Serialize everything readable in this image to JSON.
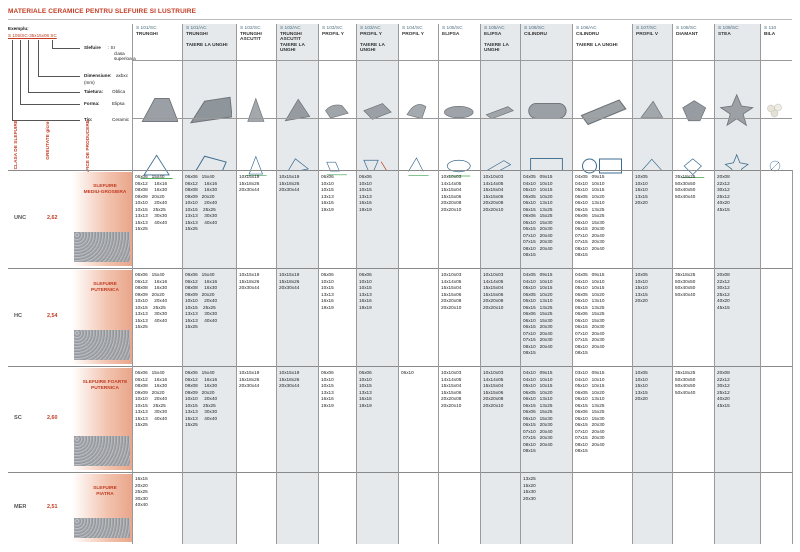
{
  "title": "MATERIALE CERAMICE PENTRU SLEFUIRE SI LUSTRUIRE",
  "legend": {
    "example_label": "Exemplu:",
    "example_code": "S 105/SC-35x15x06 SC",
    "rows": [
      {
        "label": "Slefuire",
        "value": ": SI"
      },
      {
        "label": "",
        "value": "clasa superioara"
      },
      {
        "label": "Dimensiune:",
        "value": "axbxc"
      },
      {
        "label": "",
        "value": "(mm)"
      },
      {
        "label": "Taietura:",
        "value": "Oblica"
      },
      {
        "label": "Forma:",
        "value": "Elipsa"
      },
      {
        "label": "Tip:",
        "value": "Ceramic"
      }
    ]
  },
  "side_headers": {
    "class": "CLASA DE SLEFUIRE",
    "grit": "GREUTATE g/cm³",
    "profile": "GRAFICE DE PRODUCERE"
  },
  "colors": {
    "accent": "#c23b22",
    "code": "#4a6e7f",
    "shade": "#e6e9ec"
  },
  "columns": [
    {
      "code": "S 101/SC",
      "name": "TRUNGHI",
      "shade": false
    },
    {
      "code": "S 101/AC",
      "name": "TRUNGHI\n\nTAIERE LA UNGHI",
      "shade": true
    },
    {
      "code": "S 102/SC",
      "name": "TRUNGHI ASCUTIT",
      "shade": false
    },
    {
      "code": "S 102/AC",
      "name": "TRUNGHI ASCUTIT TAIERE LA UNGHI",
      "shade": true
    },
    {
      "code": "S 103/SC",
      "name": "PROFIL Y",
      "shade": false
    },
    {
      "code": "S 103/AC",
      "name": "PROFIL Y\n\nTAIERE LA UNGHI",
      "shade": true
    },
    {
      "code": "S 104/SC",
      "name": "PROFIL Y",
      "shade": false
    },
    {
      "code": "S 105/SC",
      "name": "ELIPSA",
      "shade": false
    },
    {
      "code": "S 105/AC",
      "name": "ELIPSA\n\nTAIERE LA UNGHI",
      "shade": true
    },
    {
      "code": "S 106/SC",
      "name": "CILINDRU",
      "shade": true
    },
    {
      "code": "S 106/AC",
      "name": "CILINDRU\n\nTAIERE LA UNGHI",
      "shade": false
    },
    {
      "code": "S 107/SC",
      "name": "PROFIL V",
      "shade": true
    },
    {
      "code": "S 108/SC",
      "name": "DIAMANT",
      "shade": false
    },
    {
      "code": "S 109/SC",
      "name": "STEA",
      "shade": true
    },
    {
      "code": "S 110",
      "name": "BILA",
      "shade": false
    }
  ],
  "rows": [
    {
      "grade": "UNC",
      "grit": "2,62",
      "label": "SLEFUIRE\nMEDIU-GROSIERA",
      "cells": [
        "06x06   15x40\n06x12     16x16\n08x08     16x30\n09x09   20x20\n10x10     20x40\n10x15    25x25\n13x13     30x30\n15x13     40x40\n15x25",
        "06x06   15x40\n06x12     16x16\n08x08     16x30\n09x09   20x20\n10x10     20x40\n10x15    25x25\n13x13     30x30\n15x13     40x40\n15x25",
        "10x15x19\n15x18x26\n20x30x44",
        "10x15x19\n15x18x26\n20x30x44",
        "06x06\n10x10\n10x15\n13x13\n16x16\n19x19",
        "06x06\n10x10\n10x15\n13x13\n16x16\n19x19",
        "",
        "10x10x03\n14x14x05\n15x15x04\n15x15x06\n20x20x08\n20x20x10",
        "10x10x03\n14x14x05\n15x15x04\n15x15x06\n20x20x08\n20x20x10",
        "04x05   09x15\n04x10   10x10\n05x10   10x15\n06x05   10x20\n06x10   13x10\n06x15   13x25\n06x06   15x25\n06x10   15x30\n06x15   20x30\n07x10   20x40\n07x15   20x30\n08x10   20x40\n08x15",
        "04x05   09x15\n04x10   10x10\n05x10   10x15\n06x05   10x20\n06x10   13x10\n06x15   13x25\n06x06   15x25\n06x10   15x30\n06x15   20x30\n07x10   20x40\n07x15   20x30\n08x10   20x40\n08x15",
        "10x05\n10x10\n15x10\n13x15\n20x20",
        "35x18x25\n50x30x50\n50x40x50\n50x40x40",
        "20x08\n22x12\n30x12\n25x12\n40x20\n45x15",
        ""
      ]
    },
    {
      "grade": "HC",
      "grit": "2,54",
      "label": "SLEFUIRE\nPUTERNICA",
      "cells": [
        "06x06   15x40\n06x12     16x16\n08x08     16x30\n09x09   20x20\n10x10     20x40\n10x15    25x25\n13x13     30x30\n15x13     40x40\n15x25",
        "06x06   15x40\n06x12     16x16\n08x08     16x30\n09x09   20x20\n10x10     20x40\n10x15    25x25\n13x13     30x30\n15x13     40x40\n15x25",
        "10x15x19\n15x18x26\n20x30x44",
        "10x15x19\n15x18x26\n20x30x44",
        "06x06\n10x10\n10x15\n13x13\n16x16\n19x19",
        "06x06\n10x10\n10x15\n13x13\n16x16\n19x19",
        "",
        "10x10x03\n14x14x05\n15x15x04\n15x15x06\n20x20x08\n20x20x10",
        "10x10x03\n14x14x05\n15x15x04\n15x15x06\n20x20x08\n20x20x10",
        "04x05   09x15\n04x10   10x10\n05x10   10x15\n06x05   10x20\n06x10   13x10\n06x15   13x25\n06x06   15x25\n06x10   15x30\n06x15   20x30\n07x10   20x40\n07x15   20x30\n08x10   20x40\n08x15",
        "04x05   09x15\n04x10   10x10\n05x10   10x15\n06x05   10x20\n06x10   13x10\n06x15   13x25\n06x06   15x25\n06x10   15x30\n06x15   20x30\n07x10   20x40\n07x15   20x30\n08x10   20x40\n08x15",
        "10x05\n10x10\n15x10\n13x15\n20x20",
        "35x18x25\n50x30x50\n50x40x50\n50x40x40",
        "20x08\n22x12\n30x12\n25x12\n40x20\n45x15",
        ""
      ]
    },
    {
      "grade": "SC",
      "grit": "2,60",
      "label": "SLEFUIRE FOARTE\nPUTERNICA",
      "cells": [
        "06x06   15x40\n06x12     16x16\n08x08     16x30\n09x09   20x20\n10x10     20x40\n10x15    25x25\n13x13     30x30\n15x13     40x40\n15x25",
        "06x06   15x40\n06x12     16x16\n08x08     16x30\n09x09   20x20\n10x10     20x40\n10x15    25x25\n13x13     30x30\n15x13     40x40\n15x25",
        "10x15x19\n15x18x26\n20x30x44",
        "10x15x19\n15x18x26\n20x30x44",
        "06x06\n10x10\n10x15\n13x13\n16x16\n19x19",
        "06x06\n10x10\n10x15\n13x13\n16x16\n19x19",
        "06x10",
        "10x10x03\n14x14x05\n15x15x04\n15x15x06\n20x20x08\n20x20x10",
        "10x10x03\n14x14x05\n15x15x04\n15x15x06\n20x20x08\n20x20x10",
        "04x10   09x15\n04x10   10x10\n05x10   10x15\n06x05   10x20\n06x10   13x10\n06x15   13x25\n06x06   15x25\n06x10   15x30\n06x15   20x30\n07x10   20x40\n07x15   20x30\n08x10   20x40\n08x15",
        "03x10   09x15\n04x10   10x10\n05x10   10x15\n06x05   10x20\n06x10   13x10\n06x15   13x25\n06x06   15x25\n06x10   15x30\n06x15   20x30\n07x10   20x40\n07x15   20x30\n08x10   20x40\n08x15",
        "10x05\n10x10\n15x10\n13x15\n20x20",
        "35x18x25\n50x30x50\n50x40x50\n50x40x40",
        "20x08\n22x12\n30x12\n25x12\n40x20\n45x15",
        ""
      ]
    },
    {
      "grade": "MER",
      "grit": "2,51",
      "label": "SLEFUIRE\nPIATRA",
      "cells": [
        "16x16\n20x20\n25x25\n30x30\n40x40",
        "",
        "",
        "",
        "",
        "",
        "",
        "",
        "",
        "13x25\n15x20\n15x30\n20x30",
        "",
        "",
        "",
        "",
        ""
      ]
    }
  ]
}
